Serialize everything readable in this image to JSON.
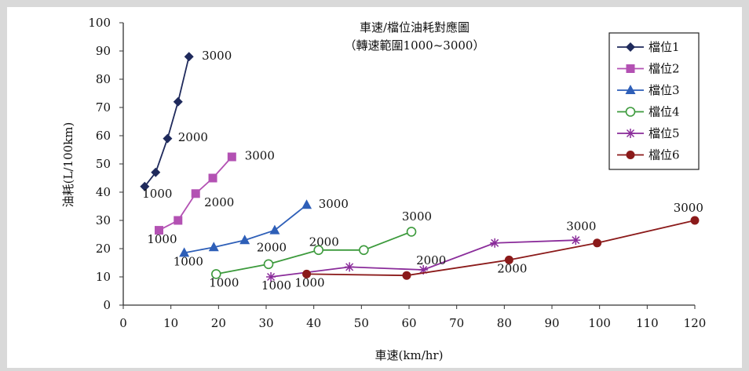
{
  "chart_data": {
    "type": "scatter",
    "title": "車速/檔位油耗對應圖",
    "subtitle": "（轉速範圍1000~3000）",
    "xlabel": "車速(km/hr)",
    "ylabel": "油耗(L/100km)",
    "xlim": [
      0,
      120
    ],
    "ylim": [
      0,
      100
    ],
    "xticks": [
      "0",
      "10",
      "20",
      "30",
      "40",
      "50",
      "60",
      "70",
      "80",
      "90",
      "100",
      "110",
      "120"
    ],
    "yticks": [
      "0",
      "10",
      "20",
      "30",
      "40",
      "50",
      "60",
      "70",
      "80",
      "90",
      "100"
    ],
    "grid": false,
    "legend_position": "top-right",
    "series": [
      {
        "name": "檔位1",
        "color": "#1f2a5c",
        "marker": "diamond",
        "x": [
          4.5,
          6.8,
          9.3,
          11.5,
          13.8
        ],
        "y": [
          42,
          47,
          59,
          72,
          88
        ]
      },
      {
        "name": "檔位2",
        "color": "#b351b3",
        "marker": "square",
        "x": [
          7.5,
          11.5,
          15.2,
          18.8,
          22.8
        ],
        "y": [
          26.5,
          30,
          39.5,
          45,
          52.5
        ]
      },
      {
        "name": "檔位3",
        "color": "#2e5fb8",
        "marker": "triangle",
        "x": [
          12.8,
          19,
          25.5,
          31.8,
          38.5
        ],
        "y": [
          18.5,
          20.5,
          23,
          26.5,
          35.5
        ]
      },
      {
        "name": "檔位4",
        "color": "#3c9a3c",
        "marker": "circle-open",
        "x": [
          19.5,
          30.5,
          41,
          50.5,
          60.5
        ],
        "y": [
          11,
          14.5,
          19.5,
          19.5,
          26
        ]
      },
      {
        "name": "檔位5",
        "color": "#8a2c9a",
        "marker": "star",
        "x": [
          31,
          47.5,
          63,
          78,
          95
        ],
        "y": [
          10,
          13.5,
          12.5,
          22,
          23
        ]
      },
      {
        "name": "檔位6",
        "color": "#8b1a1a",
        "marker": "circle",
        "x": [
          38.5,
          59.5,
          81,
          99.5,
          120
        ],
        "y": [
          11,
          10.5,
          16,
          22,
          30
        ]
      }
    ],
    "annotations": [
      {
        "text": "1000",
        "x": 4,
        "y": 38
      },
      {
        "text": "2000",
        "x": 11.5,
        "y": 58
      },
      {
        "text": "3000",
        "x": 16.5,
        "y": 87
      },
      {
        "text": "1000",
        "x": 5,
        "y": 22
      },
      {
        "text": "2000",
        "x": 17,
        "y": 35
      },
      {
        "text": "3000",
        "x": 25.5,
        "y": 51.5
      },
      {
        "text": "1000",
        "x": 10.5,
        "y": 14
      },
      {
        "text": "2000",
        "x": 28,
        "y": 19
      },
      {
        "text": "3000",
        "x": 41,
        "y": 34.5
      },
      {
        "text": "1000",
        "x": 18,
        "y": 6.5
      },
      {
        "text": "2000",
        "x": 39,
        "y": 21
      },
      {
        "text": "3000",
        "x": 58.5,
        "y": 30
      },
      {
        "text": "1000",
        "x": 29,
        "y": 5.5
      },
      {
        "text": "2000",
        "x": 61.5,
        "y": 14.5
      },
      {
        "text": "3000",
        "x": 93,
        "y": 26.5
      },
      {
        "text": "1000",
        "x": 36,
        "y": 6.5
      },
      {
        "text": "2000",
        "x": 78.5,
        "y": 11.5
      },
      {
        "text": "3000",
        "x": 115.5,
        "y": 33
      }
    ]
  }
}
